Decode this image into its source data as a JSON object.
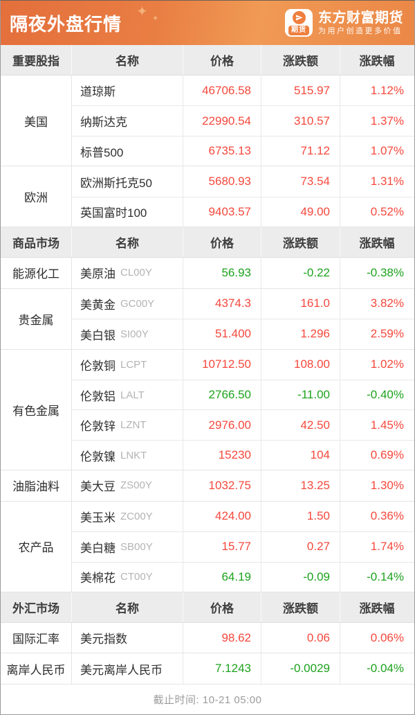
{
  "banner": {
    "title": "隔夜外盘行情",
    "brand_name": "东方财富期货",
    "brand_slogan": "为用户创造更多价值",
    "logo_badge": "期货",
    "sparkle_glyph": "✦"
  },
  "columns": {
    "name": "名称",
    "price": "价格",
    "change": "涨跌额",
    "pct": "涨跌幅"
  },
  "colors": {
    "up": "#f5483c",
    "down": "#1ca21c",
    "accent": "#ee8244"
  },
  "sections": [
    {
      "title": "重要股指",
      "groups": [
        {
          "label": "美国",
          "rows": [
            {
              "name": "道琼斯",
              "code": "",
              "price": "46706.58",
              "change": "515.97",
              "pct": "1.12%",
              "dir": "up"
            },
            {
              "name": "纳斯达克",
              "code": "",
              "price": "22990.54",
              "change": "310.57",
              "pct": "1.37%",
              "dir": "up"
            },
            {
              "name": "标普500",
              "code": "",
              "price": "6735.13",
              "change": "71.12",
              "pct": "1.07%",
              "dir": "up"
            }
          ]
        },
        {
          "label": "欧洲",
          "rows": [
            {
              "name": "欧洲斯托克50",
              "code": "",
              "price": "5680.93",
              "change": "73.54",
              "pct": "1.31%",
              "dir": "up"
            },
            {
              "name": "英国富时100",
              "code": "",
              "price": "9403.57",
              "change": "49.00",
              "pct": "0.52%",
              "dir": "up"
            }
          ]
        }
      ]
    },
    {
      "title": "商品市场",
      "groups": [
        {
          "label": "能源化工",
          "rows": [
            {
              "name": "美原油",
              "code": "CL00Y",
              "price": "56.93",
              "change": "-0.22",
              "pct": "-0.38%",
              "dir": "down"
            }
          ]
        },
        {
          "label": "贵金属",
          "rows": [
            {
              "name": "美黄金",
              "code": "GC00Y",
              "price": "4374.3",
              "change": "161.0",
              "pct": "3.82%",
              "dir": "up"
            },
            {
              "name": "美白银",
              "code": "SI00Y",
              "price": "51.400",
              "change": "1.296",
              "pct": "2.59%",
              "dir": "up"
            }
          ]
        },
        {
          "label": "有色金属",
          "rows": [
            {
              "name": "伦敦铜",
              "code": "LCPT",
              "price": "10712.50",
              "change": "108.00",
              "pct": "1.02%",
              "dir": "up"
            },
            {
              "name": "伦敦铝",
              "code": "LALT",
              "price": "2766.50",
              "change": "-11.00",
              "pct": "-0.40%",
              "dir": "down"
            },
            {
              "name": "伦敦锌",
              "code": "LZNT",
              "price": "2976.00",
              "change": "42.50",
              "pct": "1.45%",
              "dir": "up"
            },
            {
              "name": "伦敦镍",
              "code": "LNKT",
              "price": "15230",
              "change": "104",
              "pct": "0.69%",
              "dir": "up"
            }
          ]
        },
        {
          "label": "油脂油料",
          "rows": [
            {
              "name": "美大豆",
              "code": "ZS00Y",
              "price": "1032.75",
              "change": "13.25",
              "pct": "1.30%",
              "dir": "up"
            }
          ]
        },
        {
          "label": "农产品",
          "rows": [
            {
              "name": "美玉米",
              "code": "ZC00Y",
              "price": "424.00",
              "change": "1.50",
              "pct": "0.36%",
              "dir": "up"
            },
            {
              "name": "美白糖",
              "code": "SB00Y",
              "price": "15.77",
              "change": "0.27",
              "pct": "1.74%",
              "dir": "up"
            },
            {
              "name": "美棉花",
              "code": "CT00Y",
              "price": "64.19",
              "change": "-0.09",
              "pct": "-0.14%",
              "dir": "down"
            }
          ]
        }
      ]
    },
    {
      "title": "外汇市场",
      "groups": [
        {
          "label": "国际汇率",
          "rows": [
            {
              "name": "美元指数",
              "code": "",
              "price": "98.62",
              "change": "0.06",
              "pct": "0.06%",
              "dir": "up"
            }
          ]
        },
        {
          "label": "离岸人民币",
          "rows": [
            {
              "name": "美元离岸人民币",
              "code": "",
              "price": "7.1243",
              "change": "-0.0029",
              "pct": "-0.04%",
              "dir": "down"
            }
          ]
        }
      ]
    }
  ],
  "footer": {
    "cutoff": "截止时间: 10-21 05:00"
  }
}
